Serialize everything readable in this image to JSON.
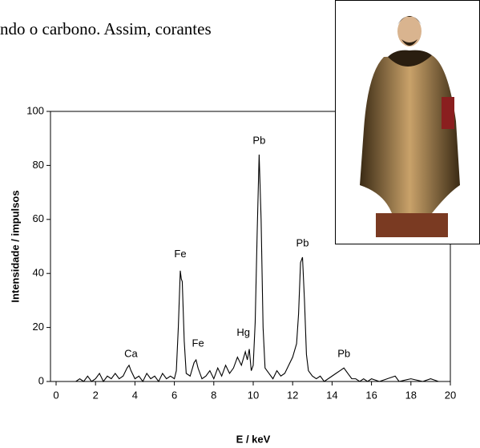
{
  "text_fragment": "ndo o carbono. Assim, corantes",
  "chart_data": {
    "type": "line",
    "xlabel": "E / keV",
    "ylabel": "Intensidade / impulsos",
    "x": [
      1.0,
      1.2,
      1.4,
      1.6,
      1.8,
      2.0,
      2.2,
      2.4,
      2.6,
      2.8,
      3.0,
      3.2,
      3.4,
      3.6,
      3.7,
      3.8,
      4.0,
      4.2,
      4.4,
      4.6,
      4.8,
      5.0,
      5.2,
      5.4,
      5.6,
      5.8,
      6.0,
      6.1,
      6.2,
      6.3,
      6.35,
      6.4,
      6.5,
      6.6,
      6.8,
      7.0,
      7.1,
      7.2,
      7.4,
      7.6,
      7.8,
      8.0,
      8.2,
      8.4,
      8.6,
      8.8,
      9.0,
      9.2,
      9.4,
      9.6,
      9.7,
      9.8,
      9.9,
      10.0,
      10.1,
      10.2,
      10.3,
      10.4,
      10.5,
      10.6,
      10.8,
      11.0,
      11.2,
      11.4,
      11.6,
      11.8,
      12.0,
      12.2,
      12.3,
      12.4,
      12.5,
      12.6,
      12.7,
      12.8,
      13.0,
      13.2,
      13.4,
      13.6,
      13.8,
      14.0,
      14.2,
      14.4,
      14.6,
      14.8,
      15.0,
      15.2,
      15.4,
      15.6,
      15.8,
      16.0,
      16.4,
      16.8,
      17.2,
      17.4,
      18.0,
      18.6,
      19.0,
      19.4,
      20.0
    ],
    "series": [
      {
        "color": "#000000",
        "values": [
          0,
          1,
          0,
          2,
          0,
          1,
          3,
          0,
          2,
          1,
          3,
          1,
          2,
          5,
          6,
          4,
          1,
          2,
          0,
          3,
          1,
          2,
          0,
          3,
          1,
          2,
          1,
          4,
          20,
          41,
          38,
          37,
          15,
          3,
          2,
          7,
          8,
          5,
          1,
          2,
          4,
          1,
          5,
          2,
          6,
          3,
          5,
          9,
          6,
          11,
          8,
          12,
          4,
          6,
          22,
          55,
          84,
          60,
          20,
          5,
          3,
          1,
          4,
          2,
          3,
          6,
          9,
          14,
          25,
          44,
          46,
          30,
          10,
          4,
          2,
          1,
          2,
          0,
          1,
          2,
          3,
          4,
          5,
          3,
          1,
          1,
          0,
          1,
          0,
          1,
          0,
          1,
          2,
          0,
          1,
          0,
          1,
          0,
          0
        ]
      }
    ],
    "xlim": [
      0,
      20
    ],
    "xticks": [
      0,
      2,
      4,
      6,
      8,
      10,
      12,
      14,
      16,
      18,
      20
    ],
    "ylim": [
      0,
      100
    ],
    "yticks": [
      0,
      20,
      40,
      60,
      80,
      100
    ],
    "annotations": [
      {
        "text": "Ca",
        "x": 3.8,
        "y": 10
      },
      {
        "text": "Fe",
        "x": 6.3,
        "y": 47
      },
      {
        "text": "Fe",
        "x": 7.2,
        "y": 14
      },
      {
        "text": "Hg",
        "x": 9.5,
        "y": 18
      },
      {
        "text": "Pb",
        "x": 10.3,
        "y": 89
      },
      {
        "text": "Pb",
        "x": 12.5,
        "y": 51
      },
      {
        "text": "Pb",
        "x": 14.6,
        "y": 10
      }
    ]
  }
}
